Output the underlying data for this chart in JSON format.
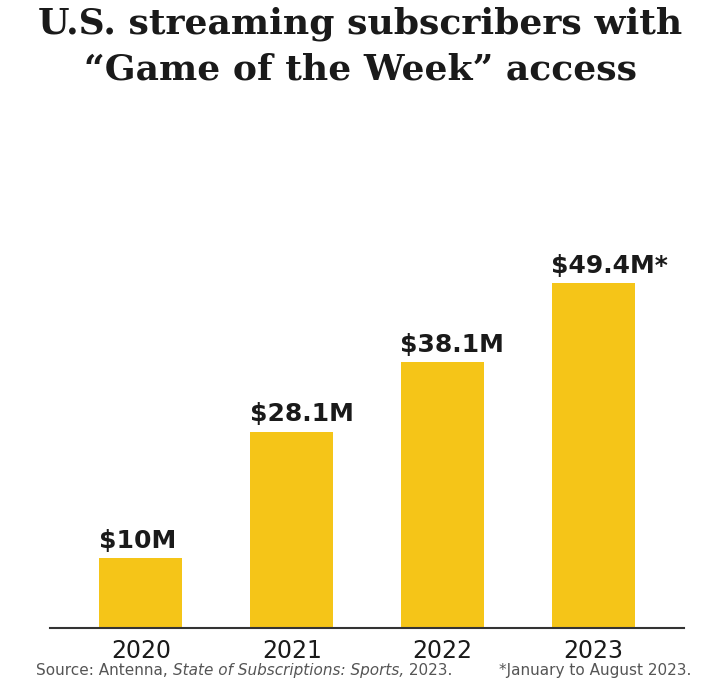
{
  "title_line1": "U.S. streaming subscribers with",
  "title_line2": "“Game of the Week” access",
  "categories": [
    "2020",
    "2021",
    "2022",
    "2023"
  ],
  "values": [
    10,
    28.1,
    38.1,
    49.4
  ],
  "labels": [
    "$10M",
    "$28.1M",
    "$38.1M",
    "$49.4M*"
  ],
  "bar_color": "#F5C518",
  "background_color": "#FFFFFF",
  "text_color": "#1a1a1a",
  "source_prefix": "Source: Antenna, ",
  "source_italic": "State of Subscriptions: Sports,",
  "source_suffix": " 2023.",
  "footnote_text": "*January to August 2023.",
  "ylim": [
    0,
    58
  ],
  "bar_width": 0.55,
  "title_fontsize": 26,
  "label_fontsize": 18,
  "tick_fontsize": 17,
  "source_fontsize": 11
}
